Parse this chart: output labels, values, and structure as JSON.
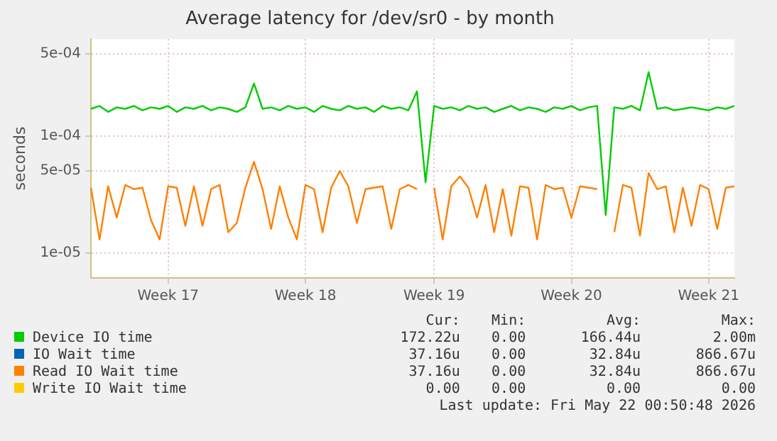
{
  "chart_data": {
    "type": "line",
    "title": "Average latency for /dev/sr0 - by month",
    "ylabel": "seconds",
    "log": "y",
    "grid": true,
    "legend": "bottom",
    "categories": [
      null,
      null,
      null,
      null,
      null,
      null,
      null,
      null,
      null,
      "Week 17",
      null,
      null,
      null,
      null,
      null,
      null,
      null,
      null,
      null,
      null,
      null,
      null,
      null,
      null,
      null,
      "Week 18",
      null,
      null,
      null,
      null,
      null,
      null,
      null,
      null,
      null,
      null,
      null,
      null,
      null,
      null,
      "Week 19",
      null,
      null,
      null,
      null,
      null,
      null,
      null,
      null,
      null,
      null,
      null,
      null,
      null,
      null,
      null,
      "Week 20",
      null,
      null,
      null,
      null,
      null,
      null,
      null,
      null,
      null,
      null,
      null,
      null,
      null,
      null,
      null,
      "Week 21",
      null,
      null,
      null
    ],
    "ylim": [
      6.1e-06,
      0.00067
    ],
    "yticks": [
      {
        "value": 1e-05,
        "label": "1e-05"
      },
      {
        "value": 5e-05,
        "label": "5e-05"
      },
      {
        "value": 0.0001,
        "label": "1e-04"
      },
      {
        "value": 0.0005,
        "label": "5e-04"
      }
    ],
    "series": [
      {
        "name": "Device IO time",
        "color": "#00cc00",
        "values": [
          0.00017,
          0.00018,
          0.00016,
          0.000175,
          0.00017,
          0.00018,
          0.000165,
          0.000175,
          0.00017,
          0.00018,
          0.00016,
          0.000175,
          0.00017,
          0.00018,
          0.000165,
          0.000175,
          0.00017,
          0.00016,
          0.000175,
          0.00028,
          0.00017,
          0.000175,
          0.000165,
          0.00018,
          0.00017,
          0.000175,
          0.00016,
          0.00018,
          0.00017,
          0.000165,
          0.00018,
          0.00017,
          0.000175,
          0.00016,
          0.00018,
          0.00017,
          0.000175,
          0.000165,
          0.00024,
          4e-05,
          0.00018,
          0.00017,
          0.000175,
          0.000165,
          0.00018,
          0.00017,
          0.000175,
          0.00016,
          0.00017,
          0.00018,
          0.000165,
          0.000175,
          0.00017,
          0.00016,
          0.000175,
          0.00017,
          0.00018,
          0.000165,
          0.000175,
          0.00018,
          2.1e-05,
          0.000175,
          0.00017,
          0.00018,
          0.000165,
          0.00035,
          0.00017,
          0.000175,
          0.000165,
          0.00017,
          0.000175,
          0.00017,
          0.000165,
          0.000175,
          0.00017,
          0.00018
        ]
      },
      {
        "name": "IO Wait time",
        "color": "#0066b3",
        "values": [
          null,
          null,
          null,
          null,
          null,
          null,
          null,
          null,
          null,
          null,
          null,
          null,
          null,
          null,
          null,
          null,
          null,
          null,
          null,
          null,
          null,
          null,
          null,
          null,
          null,
          null,
          null,
          null,
          null,
          null,
          null,
          null,
          null,
          null,
          null,
          null,
          null,
          null,
          null,
          null,
          null,
          null,
          null,
          null,
          null,
          null,
          null,
          null,
          null,
          null,
          null,
          null,
          null,
          null,
          null,
          null,
          null,
          null,
          null,
          null,
          null,
          null,
          null,
          null,
          null,
          null,
          null,
          null,
          null,
          null,
          null,
          null,
          null,
          null,
          null,
          null
        ]
      },
      {
        "name": "Read IO Wait time",
        "color": "#ff8000",
        "values": [
          3.6e-05,
          1.3e-05,
          3.7e-05,
          2e-05,
          3.8e-05,
          3.5e-05,
          3.6e-05,
          1.9e-05,
          1.3e-05,
          3.7e-05,
          3.6e-05,
          1.7e-05,
          3.7e-05,
          1.7e-05,
          3.5e-05,
          3.8e-05,
          1.5e-05,
          1.8e-05,
          3.6e-05,
          6e-05,
          3.5e-05,
          1.6e-05,
          3.7e-05,
          2e-05,
          1.3e-05,
          3.8e-05,
          3.5e-05,
          1.5e-05,
          3.6e-05,
          5e-05,
          3.7e-05,
          1.8e-05,
          3.5e-05,
          3.6e-05,
          3.7e-05,
          1.6e-05,
          3.5e-05,
          3.8e-05,
          3.5e-05,
          null,
          3.6e-05,
          1.3e-05,
          3.7e-05,
          4.5e-05,
          3.6e-05,
          2e-05,
          3.8e-05,
          1.5e-05,
          3.5e-05,
          1.4e-05,
          3.7e-05,
          3.6e-05,
          1.3e-05,
          3.8e-05,
          3.5e-05,
          3.6e-05,
          2e-05,
          3.7e-05,
          3.6e-05,
          3.5e-05,
          null,
          1.5e-05,
          3.8e-05,
          3.6e-05,
          1.4e-05,
          4.8e-05,
          3.5e-05,
          3.7e-05,
          1.5e-05,
          3.6e-05,
          1.7e-05,
          3.8e-05,
          3.5e-05,
          1.6e-05,
          3.6e-05,
          3.7e-05
        ]
      },
      {
        "name": "Write IO Wait time",
        "color": "#ffcc00",
        "values": [
          null,
          null,
          null,
          null,
          null,
          null,
          null,
          null,
          null,
          null,
          null,
          null,
          null,
          null,
          null,
          null,
          null,
          null,
          null,
          null,
          null,
          null,
          null,
          null,
          null,
          null,
          null,
          null,
          null,
          null,
          null,
          null,
          null,
          null,
          null,
          null,
          null,
          null,
          null,
          null,
          null,
          null,
          null,
          null,
          null,
          null,
          null,
          null,
          null,
          null,
          null,
          null,
          null,
          null,
          null,
          null,
          null,
          null,
          null,
          null,
          null,
          null,
          null,
          null,
          null,
          null,
          null,
          null,
          null,
          null,
          null,
          null,
          null,
          null,
          null,
          null
        ]
      }
    ],
    "annotations": [
      "Cur:",
      "Min:",
      "Avg:",
      "Max:",
      "172.22u",
      "0.00",
      "166.44u",
      "2.00m",
      "37.16u",
      "0.00",
      "32.84u",
      "866.67u",
      "37.16u",
      "0.00",
      "32.84u",
      "866.67u",
      "0.00",
      "0.00",
      "0.00",
      "0.00",
      "Last update: Fri May 22 00:50:48 2026"
    ]
  }
}
